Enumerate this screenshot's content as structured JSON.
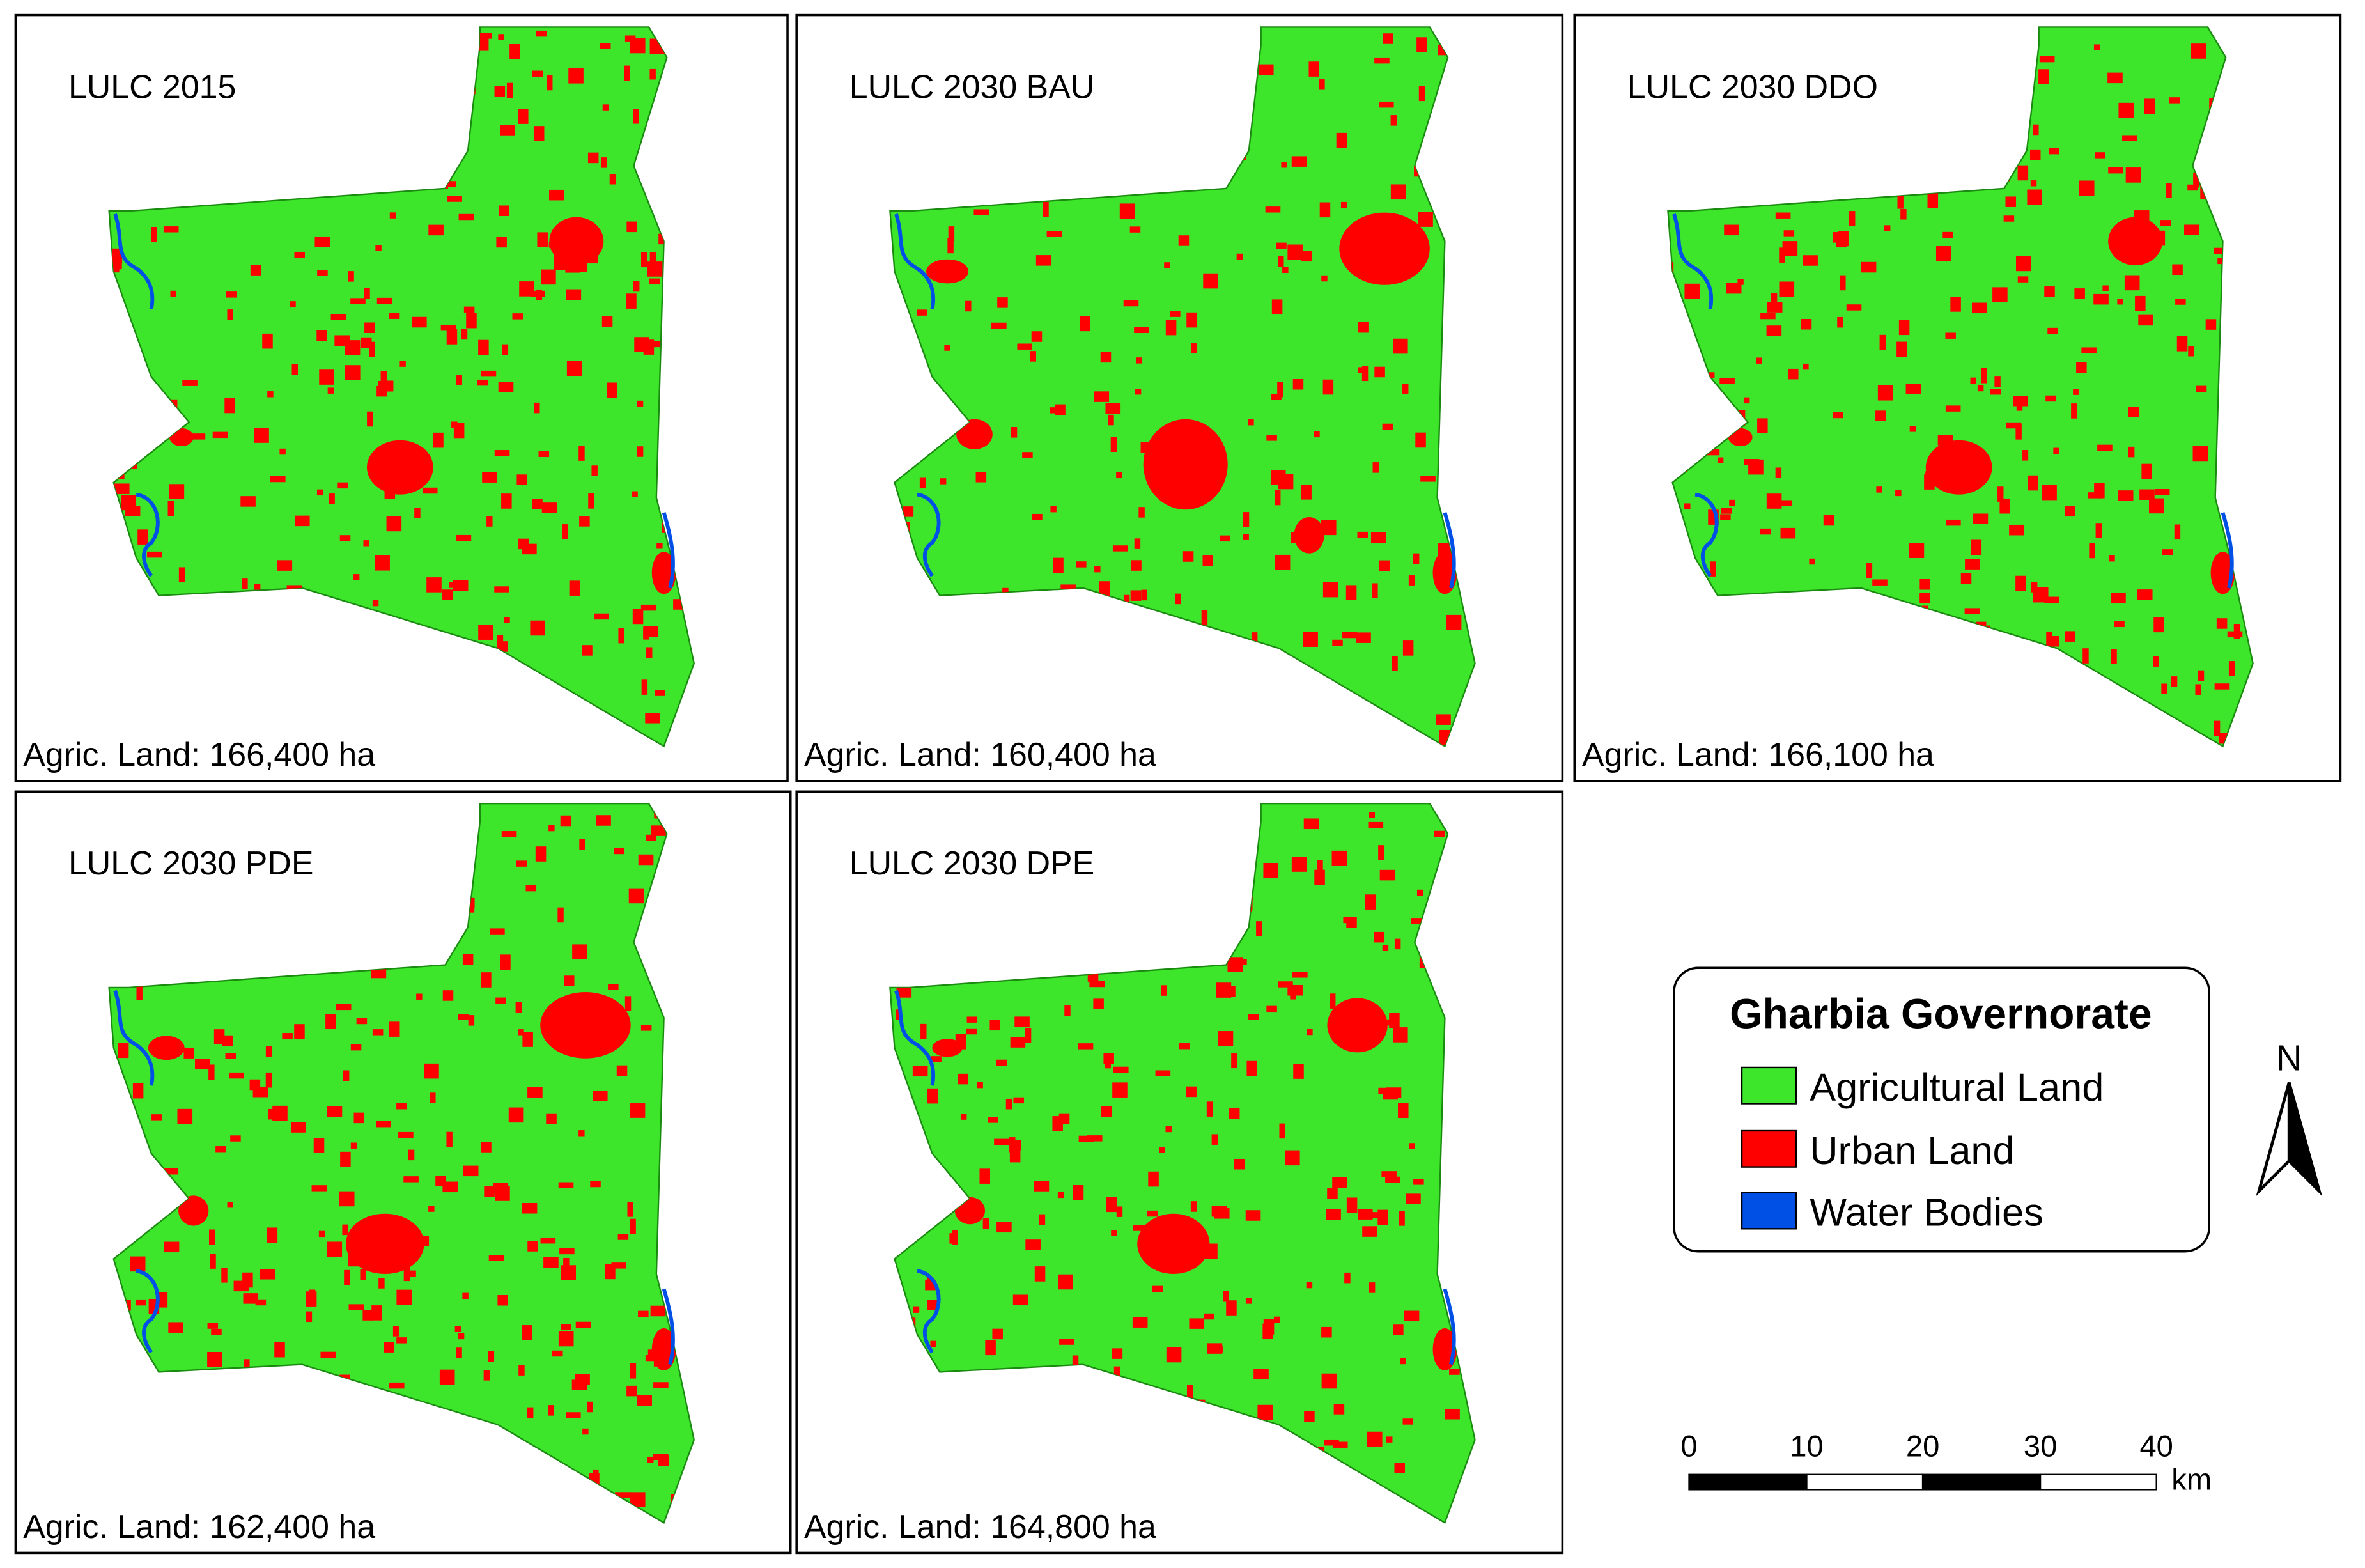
{
  "panels": [
    {
      "title": "LULC 2015",
      "agric_land": "Agric. Land: 166,400 ha"
    },
    {
      "title": "LULC 2030 BAU",
      "agric_land": "Agric. Land: 160,400 ha"
    },
    {
      "title": "LULC 2030 DDO",
      "agric_land": "Agric. Land: 166,100 ha"
    },
    {
      "title": "LULC 2030 PDE",
      "agric_land": "Agric. Land: 162,400 ha"
    },
    {
      "title": "LULC 2030 DPE",
      "agric_land": "Agric. Land: 164,800 ha"
    }
  ],
  "legend": {
    "title": "Gharbia Governorate",
    "items": [
      "Agricultural Land",
      "Urban Land",
      "Water Bodies"
    ]
  },
  "scale_bar": {
    "ticks": [
      "0",
      "10",
      "20",
      "30",
      "40"
    ],
    "unit": "km"
  },
  "north_arrow": "N"
}
